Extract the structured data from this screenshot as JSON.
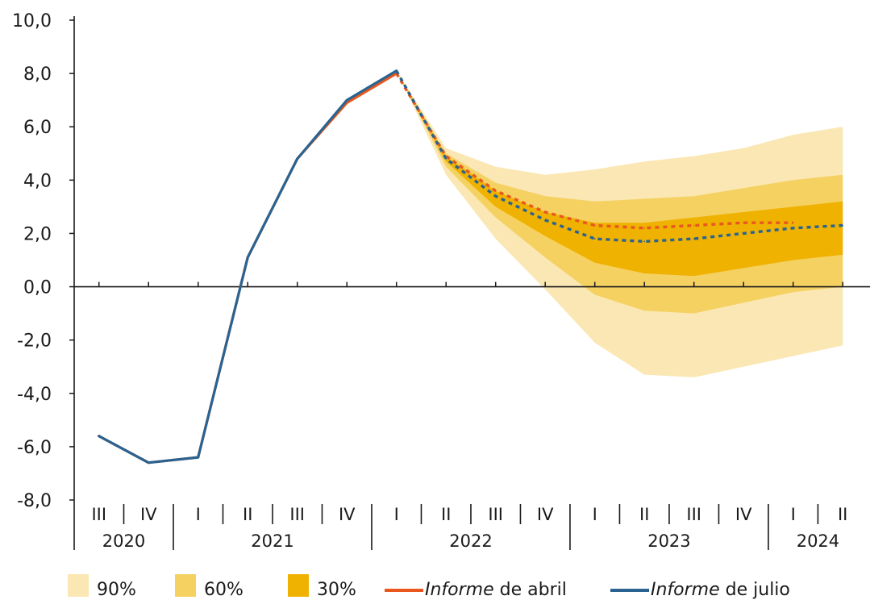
{
  "chart_data": {
    "type": "line",
    "title": "",
    "xlabel": "",
    "ylabel": "",
    "ylim": [
      -8,
      10
    ],
    "y_ticks": [
      10,
      8,
      6,
      4,
      2,
      0,
      -2,
      -4,
      -6,
      -8
    ],
    "y_tick_labels": [
      "10,0",
      "8,0",
      "6,0",
      "4,0",
      "2,0",
      "0,0",
      "-2,0",
      "-4,0",
      "-6,0",
      "-8,0"
    ],
    "quarters": [
      "III",
      "IV",
      "I",
      "II",
      "III",
      "IV",
      "I",
      "II",
      "III",
      "IV",
      "I",
      "II",
      "III",
      "IV",
      "I",
      "II"
    ],
    "years": [
      {
        "label": "2020",
        "start": 0,
        "end": 2
      },
      {
        "label": "2021",
        "start": 2,
        "end": 6
      },
      {
        "label": "2022",
        "start": 6,
        "end": 10
      },
      {
        "label": "2023",
        "start": 10,
        "end": 14
      },
      {
        "label": "2024",
        "start": 14,
        "end": 16
      }
    ],
    "fan_bands": [
      {
        "name": "90%",
        "color": "#fae7b3",
        "upper": [
          null,
          null,
          null,
          null,
          null,
          null,
          8.1,
          5.2,
          4.5,
          4.2,
          4.4,
          4.7,
          4.9,
          5.2,
          5.7,
          6.0
        ],
        "lower": [
          null,
          null,
          null,
          null,
          null,
          null,
          8.1,
          4.2,
          1.8,
          -0.1,
          -2.1,
          -3.3,
          -3.4,
          -3.0,
          -2.6,
          -2.2
        ]
      },
      {
        "name": "60%",
        "color": "#f5d162",
        "upper": [
          null,
          null,
          null,
          null,
          null,
          null,
          8.1,
          5.0,
          3.9,
          3.4,
          3.2,
          3.3,
          3.4,
          3.7,
          4.0,
          4.2
        ],
        "lower": [
          null,
          null,
          null,
          null,
          null,
          null,
          8.1,
          4.5,
          2.6,
          1.1,
          -0.3,
          -0.9,
          -1.0,
          -0.6,
          -0.2,
          0.0
        ]
      },
      {
        "name": "30%",
        "color": "#efb200",
        "upper": [
          null,
          null,
          null,
          null,
          null,
          null,
          8.1,
          4.9,
          3.6,
          2.8,
          2.4,
          2.4,
          2.6,
          2.8,
          3.0,
          3.2
        ],
        "lower": [
          null,
          null,
          null,
          null,
          null,
          null,
          8.1,
          4.7,
          3.0,
          1.9,
          0.9,
          0.5,
          0.4,
          0.7,
          1.0,
          1.2
        ]
      }
    ],
    "series": [
      {
        "name": "Informe de abril",
        "color": "#e8571e",
        "values": [
          -5.6,
          -6.6,
          -6.4,
          1.1,
          4.8,
          6.9,
          8.0,
          4.9,
          3.6,
          2.8,
          2.3,
          2.2,
          2.3,
          2.4,
          2.4,
          null
        ],
        "solid_until": 6
      },
      {
        "name": "Informe de julio",
        "color": "#2a6391",
        "values": [
          -5.6,
          -6.6,
          -6.4,
          1.1,
          4.8,
          7.0,
          8.1,
          4.8,
          3.4,
          2.5,
          1.8,
          1.7,
          1.8,
          2.0,
          2.2,
          2.3
        ],
        "solid_until": 6
      }
    ],
    "grid": false,
    "legend_position": "bottom"
  },
  "legend": [
    {
      "label": "90%",
      "kind": "box",
      "color": "#fae7b3"
    },
    {
      "label": "60%",
      "kind": "box",
      "color": "#f5d162"
    },
    {
      "label": "30%",
      "kind": "box",
      "color": "#efb200"
    },
    {
      "italic": "Informe",
      "rest": " de abril",
      "kind": "line",
      "color": "#e8571e"
    },
    {
      "italic": "Informe",
      "rest": " de julio",
      "kind": "line",
      "color": "#2a6391"
    }
  ]
}
